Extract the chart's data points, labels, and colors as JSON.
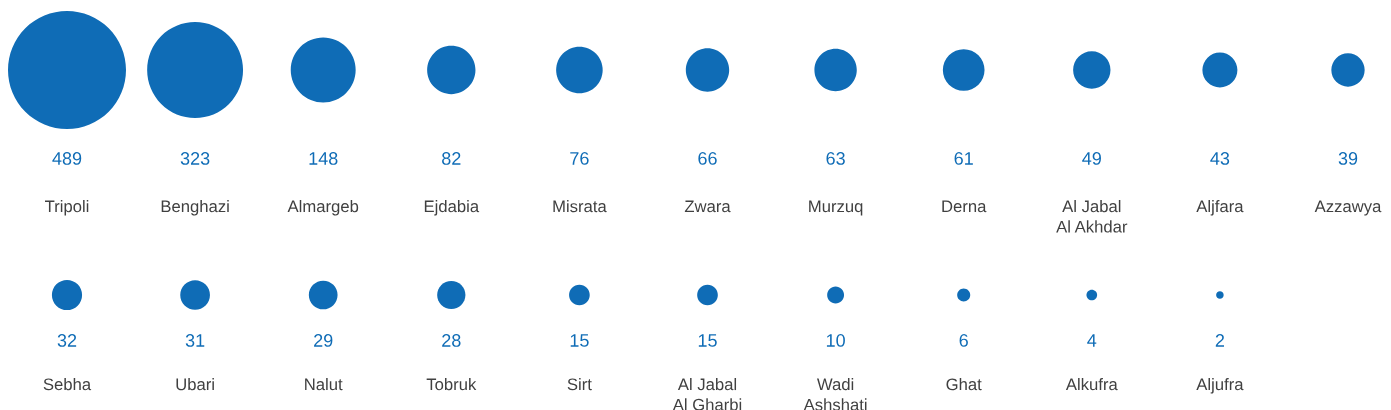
{
  "chart_data": {
    "type": "other",
    "categories": [
      "Tripoli",
      "Benghazi",
      "Almargeb",
      "Ejdabia",
      "Misrata",
      "Zwara",
      "Murzuq",
      "Derna",
      "Al Jabal\nAl Akhdar",
      "Aljfara",
      "Azzawya",
      "Sebha",
      "Ubari",
      "Nalut",
      "Tobruk",
      "Sirt",
      "Al Jabal\nAl Gharbi",
      "Wadi\nAshshati",
      "Ghat",
      "Alkufra",
      "Aljufra"
    ],
    "values": [
      489,
      323,
      148,
      82,
      76,
      66,
      63,
      61,
      49,
      43,
      39,
      32,
      31,
      29,
      28,
      15,
      15,
      10,
      6,
      4,
      2
    ],
    "color": "#0f6cb6",
    "data_labels": true
  }
}
